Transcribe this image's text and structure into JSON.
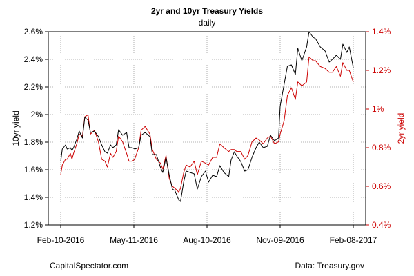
{
  "chart_data": {
    "type": "line",
    "title": "2yr and 10yr Treasury Yields",
    "subtitle": "daily",
    "xlabel": "",
    "ylabel_left": "10yr yield",
    "ylabel_right": "2yr yield",
    "x_ticks": [
      "Feb-10-2016",
      "May-11-2016",
      "Aug-10-2016",
      "Nov-09-2016",
      "Feb-08-2017"
    ],
    "x_range": [
      "2016-02-10",
      "2017-02-08"
    ],
    "y_left": {
      "min": 1.2,
      "max": 2.6,
      "ticks": [
        "1.2%",
        "1.4%",
        "1.6%",
        "1.8%",
        "2%",
        "2.2%",
        "2.4%",
        "2.6%"
      ]
    },
    "y_right": {
      "min": 0.4,
      "max": 1.4,
      "ticks": [
        "0.4%",
        "0.6%",
        "0.8%",
        "1%",
        "1.2%",
        "1.4%"
      ]
    },
    "grid": true,
    "grid_style": "dotted",
    "series": [
      {
        "axis": "left",
        "color": "#000000",
        "points": [
          [
            "2016-02-10",
            1.66
          ],
          [
            "2016-02-12",
            1.75
          ],
          [
            "2016-02-16",
            1.78
          ],
          [
            "2016-02-18",
            1.75
          ],
          [
            "2016-02-22",
            1.76
          ],
          [
            "2016-02-24",
            1.74
          ],
          [
            "2016-02-26",
            1.76
          ],
          [
            "2016-03-01",
            1.82
          ],
          [
            "2016-03-04",
            1.88
          ],
          [
            "2016-03-08",
            1.83
          ],
          [
            "2016-03-11",
            1.98
          ],
          [
            "2016-03-15",
            1.96
          ],
          [
            "2016-03-18",
            1.87
          ],
          [
            "2016-03-23",
            1.88
          ],
          [
            "2016-03-28",
            1.84
          ],
          [
            "2016-04-01",
            1.78
          ],
          [
            "2016-04-05",
            1.73
          ],
          [
            "2016-04-08",
            1.72
          ],
          [
            "2016-04-12",
            1.78
          ],
          [
            "2016-04-15",
            1.76
          ],
          [
            "2016-04-19",
            1.78
          ],
          [
            "2016-04-22",
            1.89
          ],
          [
            "2016-04-27",
            1.85
          ],
          [
            "2016-05-02",
            1.87
          ],
          [
            "2016-05-05",
            1.76
          ],
          [
            "2016-05-09",
            1.76
          ],
          [
            "2016-05-12",
            1.75
          ],
          [
            "2016-05-17",
            1.76
          ],
          [
            "2016-05-20",
            1.85
          ],
          [
            "2016-05-25",
            1.87
          ],
          [
            "2016-05-31",
            1.84
          ],
          [
            "2016-06-03",
            1.71
          ],
          [
            "2016-06-08",
            1.71
          ],
          [
            "2016-06-13",
            1.62
          ],
          [
            "2016-06-16",
            1.58
          ],
          [
            "2016-06-20",
            1.69
          ],
          [
            "2016-06-24",
            1.56
          ],
          [
            "2016-06-28",
            1.46
          ],
          [
            "2016-07-01",
            1.45
          ],
          [
            "2016-07-06",
            1.38
          ],
          [
            "2016-07-08",
            1.37
          ],
          [
            "2016-07-12",
            1.51
          ],
          [
            "2016-07-15",
            1.59
          ],
          [
            "2016-07-20",
            1.58
          ],
          [
            "2016-07-25",
            1.57
          ],
          [
            "2016-07-29",
            1.46
          ],
          [
            "2016-08-03",
            1.55
          ],
          [
            "2016-08-08",
            1.59
          ],
          [
            "2016-08-12",
            1.51
          ],
          [
            "2016-08-17",
            1.56
          ],
          [
            "2016-08-22",
            1.55
          ],
          [
            "2016-08-26",
            1.63
          ],
          [
            "2016-08-31",
            1.58
          ],
          [
            "2016-09-06",
            1.55
          ],
          [
            "2016-09-09",
            1.67
          ],
          [
            "2016-09-13",
            1.73
          ],
          [
            "2016-09-16",
            1.7
          ],
          [
            "2016-09-21",
            1.66
          ],
          [
            "2016-09-26",
            1.59
          ],
          [
            "2016-09-30",
            1.6
          ],
          [
            "2016-10-05",
            1.69
          ],
          [
            "2016-10-10",
            1.76
          ],
          [
            "2016-10-14",
            1.8
          ],
          [
            "2016-10-19",
            1.76
          ],
          [
            "2016-10-24",
            1.77
          ],
          [
            "2016-10-28",
            1.85
          ],
          [
            "2016-11-02",
            1.81
          ],
          [
            "2016-11-07",
            1.83
          ],
          [
            "2016-11-09",
            2.06
          ],
          [
            "2016-11-14",
            2.22
          ],
          [
            "2016-11-18",
            2.35
          ],
          [
            "2016-11-23",
            2.36
          ],
          [
            "2016-11-28",
            2.29
          ],
          [
            "2016-12-01",
            2.48
          ],
          [
            "2016-12-06",
            2.39
          ],
          [
            "2016-12-12",
            2.49
          ],
          [
            "2016-12-15",
            2.6
          ],
          [
            "2016-12-20",
            2.56
          ],
          [
            "2016-12-23",
            2.55
          ],
          [
            "2016-12-29",
            2.49
          ],
          [
            "2017-01-04",
            2.46
          ],
          [
            "2017-01-09",
            2.38
          ],
          [
            "2017-01-13",
            2.4
          ],
          [
            "2017-01-18",
            2.43
          ],
          [
            "2017-01-23",
            2.4
          ],
          [
            "2017-01-26",
            2.51
          ],
          [
            "2017-01-31",
            2.45
          ],
          [
            "2017-02-03",
            2.49
          ],
          [
            "2017-02-08",
            2.34
          ]
        ]
      },
      {
        "axis": "right",
        "color": "#cc0000",
        "points": [
          [
            "2016-02-10",
            0.66
          ],
          [
            "2016-02-12",
            0.71
          ],
          [
            "2016-02-16",
            0.74
          ],
          [
            "2016-02-18",
            0.74
          ],
          [
            "2016-02-22",
            0.77
          ],
          [
            "2016-02-24",
            0.74
          ],
          [
            "2016-02-26",
            0.77
          ],
          [
            "2016-03-01",
            0.82
          ],
          [
            "2016-03-04",
            0.87
          ],
          [
            "2016-03-08",
            0.86
          ],
          [
            "2016-03-11",
            0.96
          ],
          [
            "2016-03-15",
            0.97
          ],
          [
            "2016-03-18",
            0.87
          ],
          [
            "2016-03-23",
            0.89
          ],
          [
            "2016-03-28",
            0.83
          ],
          [
            "2016-04-01",
            0.74
          ],
          [
            "2016-04-05",
            0.73
          ],
          [
            "2016-04-08",
            0.7
          ],
          [
            "2016-04-12",
            0.77
          ],
          [
            "2016-04-15",
            0.75
          ],
          [
            "2016-04-19",
            0.78
          ],
          [
            "2016-04-22",
            0.86
          ],
          [
            "2016-04-27",
            0.83
          ],
          [
            "2016-05-02",
            0.77
          ],
          [
            "2016-05-05",
            0.73
          ],
          [
            "2016-05-09",
            0.73
          ],
          [
            "2016-05-12",
            0.74
          ],
          [
            "2016-05-17",
            0.8
          ],
          [
            "2016-05-20",
            0.89
          ],
          [
            "2016-05-25",
            0.91
          ],
          [
            "2016-05-31",
            0.87
          ],
          [
            "2016-06-03",
            0.79
          ],
          [
            "2016-06-08",
            0.74
          ],
          [
            "2016-06-13",
            0.72
          ],
          [
            "2016-06-16",
            0.69
          ],
          [
            "2016-06-20",
            0.76
          ],
          [
            "2016-06-24",
            0.64
          ],
          [
            "2016-06-28",
            0.6
          ],
          [
            "2016-07-01",
            0.59
          ],
          [
            "2016-07-06",
            0.57
          ],
          [
            "2016-07-08",
            0.59
          ],
          [
            "2016-07-12",
            0.67
          ],
          [
            "2016-07-15",
            0.71
          ],
          [
            "2016-07-20",
            0.7
          ],
          [
            "2016-07-25",
            0.73
          ],
          [
            "2016-07-29",
            0.66
          ],
          [
            "2016-08-03",
            0.73
          ],
          [
            "2016-08-08",
            0.72
          ],
          [
            "2016-08-12",
            0.71
          ],
          [
            "2016-08-17",
            0.75
          ],
          [
            "2016-08-22",
            0.75
          ],
          [
            "2016-08-26",
            0.82
          ],
          [
            "2016-08-31",
            0.8
          ],
          [
            "2016-09-06",
            0.78
          ],
          [
            "2016-09-09",
            0.79
          ],
          [
            "2016-09-13",
            0.79
          ],
          [
            "2016-09-16",
            0.78
          ],
          [
            "2016-09-21",
            0.78
          ],
          [
            "2016-09-26",
            0.74
          ],
          [
            "2016-09-30",
            0.76
          ],
          [
            "2016-10-05",
            0.83
          ],
          [
            "2016-10-10",
            0.85
          ],
          [
            "2016-10-14",
            0.84
          ],
          [
            "2016-10-19",
            0.82
          ],
          [
            "2016-10-24",
            0.85
          ],
          [
            "2016-10-28",
            0.86
          ],
          [
            "2016-11-02",
            0.82
          ],
          [
            "2016-11-07",
            0.83
          ],
          [
            "2016-11-09",
            0.87
          ],
          [
            "2016-11-14",
            0.94
          ],
          [
            "2016-11-18",
            1.07
          ],
          [
            "2016-11-23",
            1.11
          ],
          [
            "2016-11-28",
            1.05
          ],
          [
            "2016-12-01",
            1.14
          ],
          [
            "2016-12-06",
            1.12
          ],
          [
            "2016-12-12",
            1.14
          ],
          [
            "2016-12-15",
            1.27
          ],
          [
            "2016-12-20",
            1.25
          ],
          [
            "2016-12-23",
            1.25
          ],
          [
            "2016-12-29",
            1.22
          ],
          [
            "2017-01-04",
            1.21
          ],
          [
            "2017-01-09",
            1.19
          ],
          [
            "2017-01-13",
            1.19
          ],
          [
            "2017-01-18",
            1.22
          ],
          [
            "2017-01-23",
            1.17
          ],
          [
            "2017-01-26",
            1.24
          ],
          [
            "2017-01-31",
            1.2
          ],
          [
            "2017-02-03",
            1.2
          ],
          [
            "2017-02-08",
            1.14
          ]
        ]
      }
    ]
  },
  "footer": {
    "source_left": "CapitalSpectator.com",
    "source_right": "Data: Treasury.gov"
  }
}
